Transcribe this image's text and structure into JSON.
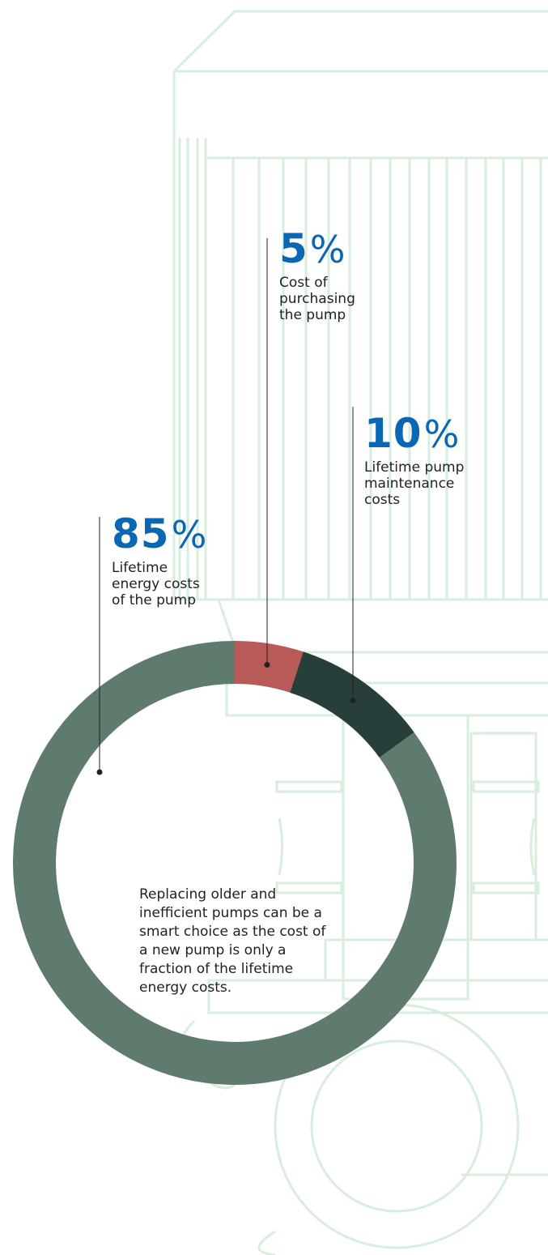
{
  "chart_data": {
    "type": "pie",
    "style": "donut",
    "slices": [
      {
        "label": "Cost of purchasing the pump",
        "value": 5,
        "display": "5",
        "color": "#b85b58"
      },
      {
        "label": "Lifetime pump maintenance costs",
        "value": 10,
        "display": "10",
        "color": "#283e3a"
      },
      {
        "label": "Lifetime energy costs of the pump",
        "value": 85,
        "display": "85",
        "color": "#5f7b6e"
      }
    ],
    "percent_sign": "%",
    "center_text": "Replacing older and inefficient pumps can be a smart choice as the cost of a new pump is only a fraction of the lifetime energy costs."
  },
  "callouts": {
    "purchase": {
      "value": "5",
      "pct": "%",
      "label": "Cost of\npurchasing\nthe pump"
    },
    "maintenance": {
      "value": "10",
      "pct": "%",
      "label": "Lifetime pump\nmaintenance\ncosts"
    },
    "energy": {
      "value": "85",
      "pct": "%",
      "label": "Lifetime\nenergy costs\nof the pump"
    }
  },
  "colors": {
    "accent": "#0a67b4",
    "background_drawing": "#d8eedc",
    "leader_line": "#222222"
  },
  "background": {
    "icon": "pump-line-drawing"
  }
}
